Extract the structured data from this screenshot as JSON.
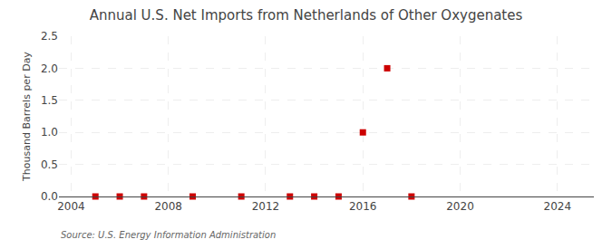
{
  "chart_data": {
    "type": "scatter",
    "title": "Annual U.S. Net Imports from Netherlands of Other Oxygenates",
    "y_label": "Thousand Barrels per Day",
    "annotations": [
      "Source: U.S. Energy Information Administration"
    ],
    "x": [
      2005,
      2006,
      2007,
      2009,
      2011,
      2013,
      2014,
      2015,
      2016,
      2017,
      2018
    ],
    "values": [
      0.0,
      0.0,
      0.0,
      0.0,
      0.0,
      0.0,
      0.0,
      0.0,
      1.0,
      2.0,
      0.0
    ],
    "color": "#cc0000",
    "marker": "square",
    "xlim": [
      2003.5,
      2025.5
    ],
    "xticks": [
      2004,
      2008,
      2012,
      2016,
      2020,
      2024
    ],
    "ylim": [
      0.0,
      2.5
    ],
    "yticks": [
      {
        "value": 0,
        "label": "0.0"
      },
      0.5,
      {
        "value": 1,
        "label": "1.0"
      },
      1.5,
      {
        "value": 2,
        "label": "2.0"
      },
      2.5
    ],
    "grid": true
  }
}
